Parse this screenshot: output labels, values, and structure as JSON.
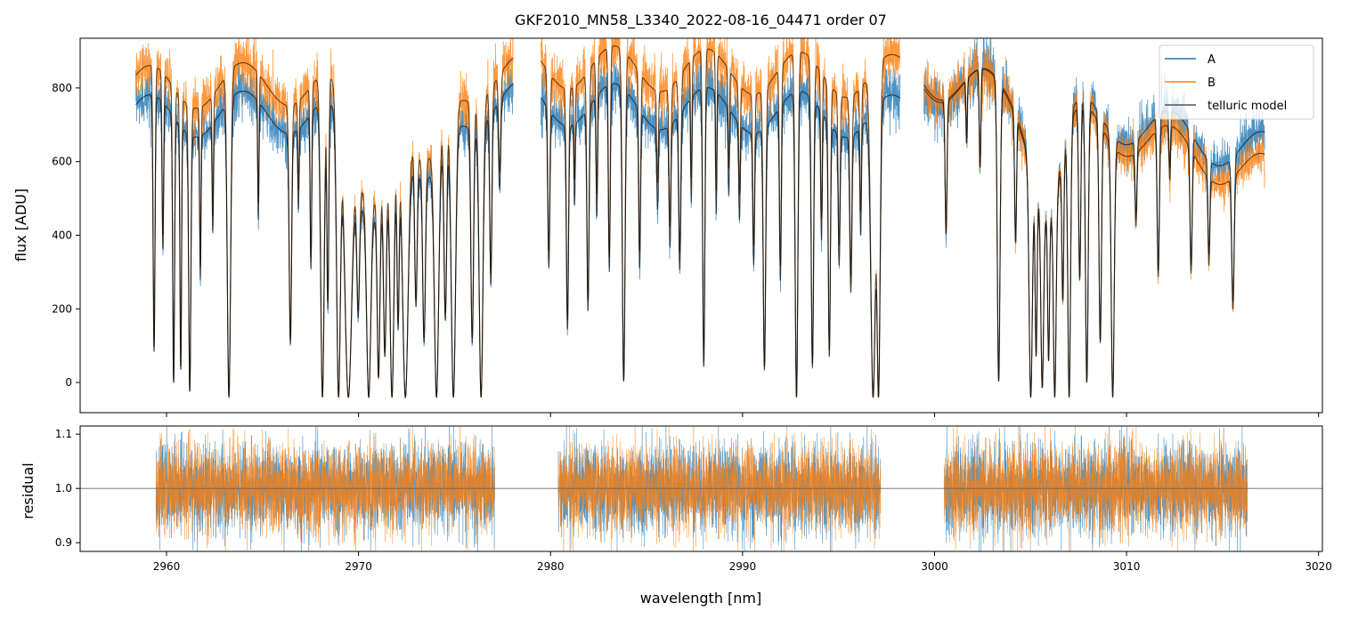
{
  "chart_data": [
    {
      "type": "line",
      "panel": "spectrum",
      "title": "GKF2010_MN58_L3340_2022-08-16_04471  order 07",
      "xlabel": "",
      "ylabel": "flux [ADU]",
      "xlim": [
        2955.5,
        3020.2
      ],
      "ylim": [
        -82,
        935
      ],
      "xticks": [
        2960,
        2970,
        2980,
        2990,
        3000,
        3010,
        3020
      ],
      "yticks": [
        0,
        200,
        400,
        600,
        800
      ],
      "legend": {
        "placement": "top-right",
        "entries": [
          "A",
          "B",
          "telluric model"
        ]
      },
      "series": [
        {
          "name": "A",
          "color": "#1f77b4"
        },
        {
          "name": "B",
          "color": "#ff7f0e"
        },
        {
          "name": "telluric model",
          "color": "#555555"
        }
      ],
      "segments": [
        {
          "range": [
            2958.4,
            2978.05
          ],
          "continuum_A": [
            720,
            760
          ],
          "continuum_B": [
            800,
            830
          ]
        },
        {
          "range": [
            2979.5,
            2998.2
          ],
          "continuum_A": [
            760,
            720
          ],
          "continuum_B": [
            860,
            830
          ]
        },
        {
          "range": [
            2999.45,
            3017.2
          ],
          "continuum_A": [
            830,
            620
          ],
          "continuum_B": [
            840,
            560
          ]
        }
      ],
      "model_floor": -40,
      "lines_center_depth_width": [
        [
          2959.35,
          0.85,
          0.07
        ],
        [
          2959.81,
          0.5,
          0.06
        ],
        [
          2960.37,
          0.95,
          0.07
        ],
        [
          2960.74,
          0.9,
          0.06
        ],
        [
          2961.21,
          0.98,
          0.08
        ],
        [
          2961.76,
          0.55,
          0.05
        ],
        [
          2962.41,
          0.4,
          0.05
        ],
        [
          2963.25,
          1.0,
          0.12
        ],
        [
          2964.78,
          0.4,
          0.05
        ],
        [
          2966.45,
          0.8,
          0.09
        ],
        [
          2966.87,
          0.3,
          0.05
        ],
        [
          2967.52,
          0.55,
          0.06
        ],
        [
          2968.12,
          1.0,
          0.13
        ],
        [
          2968.4,
          0.7,
          0.07
        ],
        [
          2968.96,
          1.0,
          0.14
        ],
        [
          2969.47,
          1.0,
          0.25
        ],
        [
          2969.98,
          0.6,
          0.1
        ],
        [
          2970.53,
          1.0,
          0.15
        ],
        [
          2971.04,
          0.9,
          0.1
        ],
        [
          2971.37,
          0.8,
          0.1
        ],
        [
          2971.74,
          1.0,
          0.14
        ],
        [
          2972.06,
          0.7,
          0.08
        ],
        [
          2972.44,
          1.0,
          0.2
        ],
        [
          2972.99,
          0.6,
          0.09
        ],
        [
          2973.41,
          0.75,
          0.1
        ],
        [
          2974.06,
          1.0,
          0.16
        ],
        [
          2974.52,
          0.7,
          0.1
        ],
        [
          2974.94,
          1.0,
          0.16
        ],
        [
          2975.92,
          0.8,
          0.1
        ],
        [
          2976.38,
          1.0,
          0.14
        ],
        [
          2976.89,
          0.6,
          0.08
        ],
        [
          2977.35,
          0.3,
          0.08
        ],
        [
          2970.5,
          0.35,
          1.4
        ],
        [
          2973.5,
          0.3,
          1.2
        ],
        [
          2979.91,
          0.55,
          0.08
        ],
        [
          2980.88,
          0.75,
          0.08
        ],
        [
          2981.25,
          0.3,
          0.05
        ],
        [
          2981.95,
          0.7,
          0.08
        ],
        [
          2982.41,
          0.4,
          0.06
        ],
        [
          2983.06,
          0.6,
          0.07
        ],
        [
          2983.81,
          0.95,
          0.1
        ],
        [
          2984.64,
          0.55,
          0.07
        ],
        [
          2985.57,
          0.3,
          0.06
        ],
        [
          2986.22,
          0.45,
          0.07
        ],
        [
          2986.73,
          0.55,
          0.08
        ],
        [
          2987.33,
          0.35,
          0.05
        ],
        [
          2987.98,
          0.9,
          0.08
        ],
        [
          2988.63,
          0.4,
          0.05
        ],
        [
          2989.28,
          0.3,
          0.05
        ],
        [
          2989.84,
          0.35,
          0.06
        ],
        [
          2990.58,
          0.5,
          0.07
        ],
        [
          2991.14,
          0.9,
          0.09
        ],
        [
          2991.97,
          0.6,
          0.07
        ],
        [
          2992.81,
          1.0,
          0.1
        ],
        [
          2993.64,
          0.9,
          0.09
        ],
        [
          2994.11,
          0.45,
          0.06
        ],
        [
          2994.52,
          0.85,
          0.08
        ],
        [
          2995.03,
          0.5,
          0.07
        ],
        [
          2995.64,
          0.6,
          0.08
        ],
        [
          2996.15,
          0.4,
          0.06
        ],
        [
          2996.8,
          1.0,
          0.17
        ],
        [
          2997.08,
          1.0,
          0.12
        ],
        [
          3000.6,
          0.45,
          0.07
        ],
        [
          3001.67,
          0.2,
          0.05
        ],
        [
          3002.37,
          0.3,
          0.06
        ],
        [
          3003.34,
          0.95,
          0.1
        ],
        [
          3004.22,
          0.45,
          0.07
        ],
        [
          3005.01,
          1.0,
          0.12
        ],
        [
          3005.29,
          0.8,
          0.07
        ],
        [
          3005.61,
          0.95,
          0.1
        ],
        [
          3005.94,
          0.8,
          0.07
        ],
        [
          3006.26,
          1.0,
          0.1
        ],
        [
          3006.68,
          0.6,
          0.07
        ],
        [
          3007.01,
          1.0,
          0.1
        ],
        [
          3007.56,
          0.6,
          0.08
        ],
        [
          3007.93,
          0.95,
          0.1
        ],
        [
          3008.63,
          0.8,
          0.09
        ],
        [
          3009.28,
          1.0,
          0.11
        ],
        [
          3010.49,
          0.3,
          0.07
        ],
        [
          3011.65,
          0.55,
          0.08
        ],
        [
          3012.25,
          0.2,
          0.06
        ],
        [
          3013.36,
          0.5,
          0.08
        ],
        [
          3014.29,
          0.4,
          0.07
        ],
        [
          3015.54,
          0.6,
          0.09
        ],
        [
          3005.9,
          0.35,
          1.0
        ]
      ]
    },
    {
      "type": "line",
      "panel": "residual",
      "xlabel": "wavelength [nm]",
      "ylabel": "residual",
      "xlim": [
        2955.5,
        3020.2
      ],
      "ylim": [
        0.884,
        1.115
      ],
      "xticks": [
        2960,
        2970,
        2980,
        2990,
        3000,
        3010,
        3020
      ],
      "yticks": [
        0.9,
        1.0,
        1.1
      ],
      "reference_line": 1.0,
      "segments": [
        [
          2959.45,
          2977.1
        ],
        [
          2980.4,
          2997.2
        ],
        [
          3000.5,
          3016.3
        ]
      ],
      "scatter_sigma": 0.04,
      "series": [
        {
          "name": "A",
          "color": "#1f77b4"
        },
        {
          "name": "B",
          "color": "#ff7f0e"
        }
      ]
    }
  ]
}
